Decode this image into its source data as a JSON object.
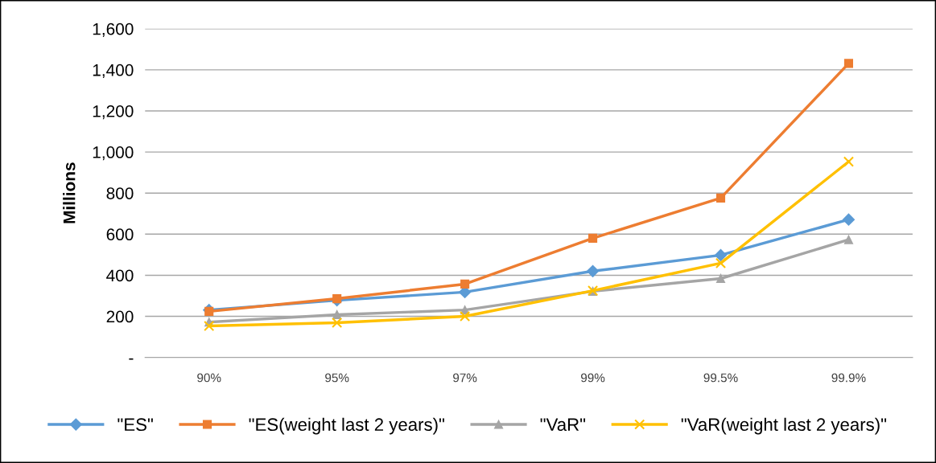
{
  "chart_data": {
    "type": "line",
    "ylabel": "Millions",
    "categories": [
      "90%",
      "95%",
      "97%",
      "99%",
      "99.5%",
      "99.9%"
    ],
    "series": [
      {
        "name": "\"ES\"",
        "color": "#5b9bd5",
        "marker": "diamond",
        "values": [
          231,
          278,
          318,
          420,
          498,
          671
        ]
      },
      {
        "name": "\"ES(weight last 2 years)\"",
        "color": "#ed7d31",
        "marker": "square",
        "values": [
          224,
          286,
          357,
          580,
          776,
          1431
        ]
      },
      {
        "name": "\"VaR\"",
        "color": "#a5a5a5",
        "marker": "triangle",
        "values": [
          172,
          208,
          231,
          322,
          384,
          573
        ]
      },
      {
        "name": "\"VaR(weight last 2 years)\"",
        "color": "#ffc000",
        "marker": "cross",
        "values": [
          153,
          169,
          200,
          325,
          459,
          953
        ]
      }
    ],
    "ylim": [
      0,
      1600
    ],
    "yticks": [
      {
        "value": 0,
        "label": "-"
      },
      200,
      400,
      600,
      800,
      {
        "value": 1000,
        "label": "1,000"
      },
      {
        "value": 1200,
        "label": "1,200"
      },
      {
        "value": 1400,
        "label": "1,400"
      },
      {
        "value": 1600,
        "label": "1,600"
      }
    ],
    "grid": "y",
    "legend": "bottom",
    "line_style": "solid"
  }
}
